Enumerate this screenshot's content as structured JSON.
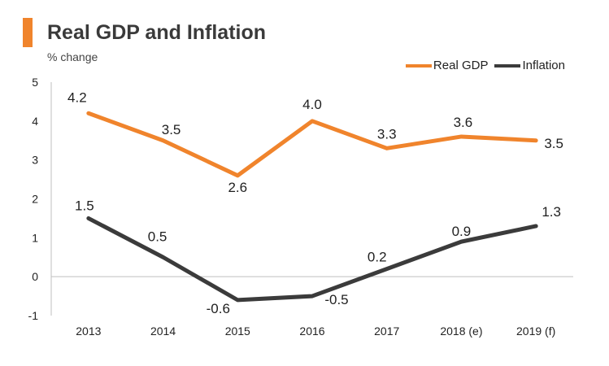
{
  "header": {
    "title": "Real GDP and Inflation",
    "subtitle": "% change"
  },
  "colors": {
    "accent": "#f0842c",
    "real_gdp": "#f0842c",
    "inflation": "#3b3b3b",
    "axis": "#bfbfbf"
  },
  "chart_data": {
    "type": "line",
    "title": "Real GDP and Inflation",
    "ylabel": "% change",
    "xlabel": "",
    "categories": [
      "2013",
      "2014",
      "2015",
      "2016",
      "2017",
      "2018 (e)",
      "2019 (f)"
    ],
    "ylim": [
      -1,
      5
    ],
    "yticks": [
      "-1",
      "0",
      "1",
      "2",
      "3",
      "4",
      "5"
    ],
    "legend_position": "top-right",
    "grid": false,
    "series": [
      {
        "name": "Real GDP",
        "values": [
          4.2,
          3.5,
          2.6,
          4.0,
          3.3,
          3.6,
          3.5
        ],
        "labels": [
          "4.2",
          "3.5",
          "2.6",
          "4.0",
          "3.3",
          "3.6",
          "3.5"
        ]
      },
      {
        "name": "Inflation",
        "values": [
          1.5,
          0.5,
          -0.6,
          -0.5,
          0.2,
          0.9,
          1.3
        ],
        "labels": [
          "1.5",
          "0.5",
          "-0.6",
          "-0.5",
          "0.2",
          "0.9",
          "1.3"
        ]
      }
    ]
  }
}
